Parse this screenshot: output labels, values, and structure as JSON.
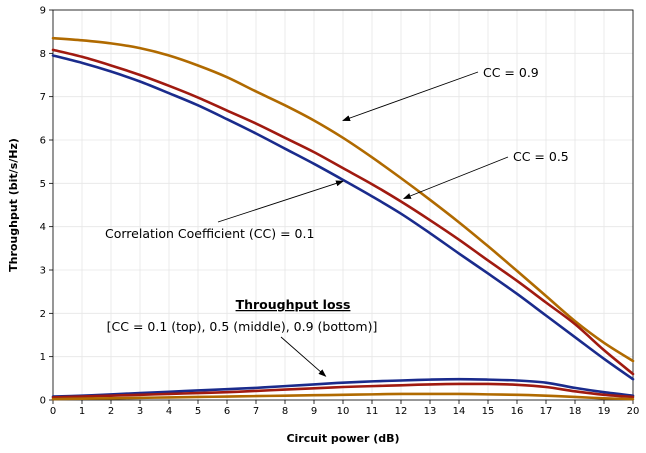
{
  "chart_data": {
    "type": "line",
    "xlabel": "Circuit power (dB)",
    "ylabel": "Throughput (bit/s/Hz)",
    "xlim": [
      0,
      20
    ],
    "ylim": [
      0,
      9
    ],
    "xticks": [
      0,
      1,
      2,
      3,
      4,
      5,
      6,
      7,
      8,
      9,
      10,
      11,
      12,
      13,
      14,
      15,
      16,
      17,
      18,
      19,
      20
    ],
    "yticks": [
      0,
      1,
      2,
      3,
      4,
      5,
      6,
      7,
      8,
      9
    ],
    "grid": true,
    "series": [
      {
        "color": "#b06a00",
        "x": [
          0,
          1,
          2,
          3,
          4,
          5,
          6,
          7,
          8,
          9,
          10,
          11,
          12,
          13,
          14,
          15,
          16,
          17,
          18,
          19,
          20
        ],
        "y": [
          8.35,
          8.3,
          8.23,
          8.12,
          7.95,
          7.72,
          7.45,
          7.12,
          6.8,
          6.45,
          6.05,
          5.6,
          5.12,
          4.62,
          4.1,
          3.55,
          2.98,
          2.4,
          1.82,
          1.32,
          0.9
        ]
      },
      {
        "color": "#a01a10",
        "x": [
          0,
          1,
          2,
          3,
          4,
          5,
          6,
          7,
          8,
          9,
          10,
          11,
          12,
          13,
          14,
          15,
          16,
          17,
          18,
          19,
          20
        ],
        "y": [
          8.08,
          7.92,
          7.72,
          7.5,
          7.25,
          6.98,
          6.68,
          6.38,
          6.05,
          5.72,
          5.35,
          4.98,
          4.58,
          4.15,
          3.7,
          3.22,
          2.75,
          2.25,
          1.75,
          1.15,
          0.6
        ]
      },
      {
        "color": "#1a2b8c",
        "x": [
          0,
          1,
          2,
          3,
          4,
          5,
          6,
          7,
          8,
          9,
          10,
          11,
          12,
          13,
          14,
          15,
          16,
          17,
          18,
          19,
          20
        ],
        "y": [
          7.95,
          7.78,
          7.58,
          7.35,
          7.08,
          6.8,
          6.48,
          6.15,
          5.8,
          5.45,
          5.08,
          4.7,
          4.3,
          3.85,
          3.38,
          2.92,
          2.45,
          1.95,
          1.45,
          0.95,
          0.48
        ]
      },
      {
        "color": "#1a2b8c",
        "x": [
          0,
          1,
          2,
          3,
          4,
          5,
          6,
          7,
          8,
          9,
          10,
          11,
          12,
          13,
          14,
          15,
          16,
          17,
          18,
          19,
          20
        ],
        "y": [
          0.08,
          0.1,
          0.13,
          0.16,
          0.19,
          0.22,
          0.25,
          0.28,
          0.32,
          0.36,
          0.4,
          0.43,
          0.45,
          0.47,
          0.48,
          0.47,
          0.45,
          0.4,
          0.28,
          0.18,
          0.1
        ]
      },
      {
        "color": "#a01a10",
        "x": [
          0,
          1,
          2,
          3,
          4,
          5,
          6,
          7,
          8,
          9,
          10,
          11,
          12,
          13,
          14,
          15,
          16,
          17,
          18,
          19,
          20
        ],
        "y": [
          0.06,
          0.08,
          0.1,
          0.12,
          0.14,
          0.16,
          0.18,
          0.21,
          0.24,
          0.27,
          0.3,
          0.32,
          0.34,
          0.36,
          0.37,
          0.37,
          0.35,
          0.3,
          0.2,
          0.12,
          0.07
        ]
      },
      {
        "color": "#b06a00",
        "x": [
          0,
          1,
          2,
          3,
          4,
          5,
          6,
          7,
          8,
          9,
          10,
          11,
          12,
          13,
          14,
          15,
          16,
          17,
          18,
          19,
          20
        ],
        "y": [
          0.02,
          0.03,
          0.04,
          0.05,
          0.06,
          0.07,
          0.08,
          0.09,
          0.1,
          0.11,
          0.12,
          0.13,
          0.14,
          0.14,
          0.14,
          0.13,
          0.12,
          0.1,
          0.07,
          0.04,
          0.02
        ]
      }
    ],
    "annotations": [
      {
        "text": "CC = 0.9",
        "arrow_to": [
          10,
          6.45
        ]
      },
      {
        "text": "CC = 0.5",
        "arrow_to": [
          12.1,
          4.65
        ]
      },
      {
        "text": "Correlation Coefficient (CC) = 0.1",
        "arrow_to": [
          10,
          5.05
        ]
      },
      {
        "text": "Throughput loss",
        "bold_underline": true
      },
      {
        "text": "[CC = 0.1 (top), 0.5 (middle), 0.9 (bottom)]",
        "arrow_to": [
          9.4,
          0.55
        ]
      }
    ]
  }
}
